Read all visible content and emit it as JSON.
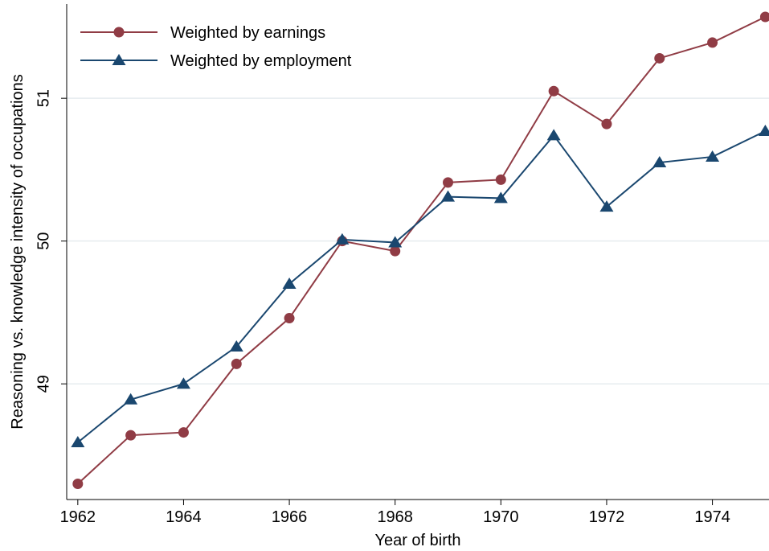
{
  "chart_data": {
    "type": "line",
    "x_label": "Year of birth",
    "y_label": "Reasoning vs. knowledge intensity of occupations",
    "x": [
      1962,
      1963,
      1964,
      1965,
      1966,
      1967,
      1968,
      1969,
      1970,
      1971,
      1972,
      1973,
      1974,
      1975
    ],
    "series": [
      {
        "name": "Weighted by earnings",
        "color": "#903c45",
        "marker": "circle",
        "values": [
          48.3,
          48.64,
          48.66,
          49.14,
          49.46,
          50.0,
          49.93,
          50.41,
          50.43,
          51.05,
          50.82,
          51.28,
          51.39,
          51.57
        ]
      },
      {
        "name": "Weighted by employment",
        "color": "#1a476f",
        "marker": "triangle",
        "values": [
          48.59,
          48.89,
          49.0,
          49.26,
          49.7,
          50.01,
          49.99,
          50.31,
          50.3,
          50.74,
          50.24,
          50.55,
          50.59,
          50.77
        ]
      }
    ],
    "xlim": [
      1961.79,
      1975.07
    ],
    "xticks": [
      1962,
      1964,
      1966,
      1968,
      1970,
      1972,
      1974
    ],
    "ylim": [
      48.19,
      51.66
    ],
    "yticks": [
      49,
      50,
      51
    ],
    "grid": true,
    "legend": "top-left"
  }
}
